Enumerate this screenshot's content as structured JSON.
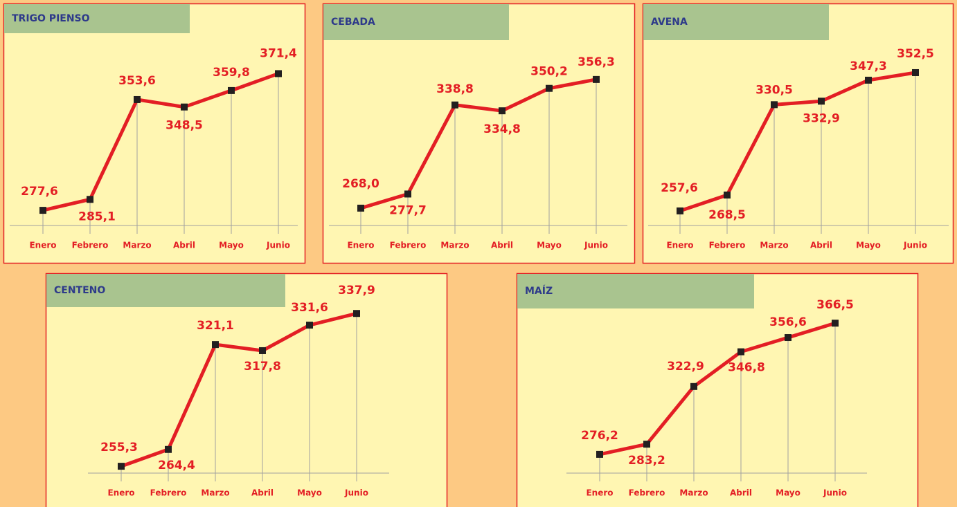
{
  "chart_data": [
    {
      "type": "line",
      "title": "TRIGO PIENSO",
      "categories": [
        "Enero",
        "Febrero",
        "Marzo",
        "Abril",
        "Mayo",
        "Junio"
      ],
      "values": [
        277.6,
        285.1,
        353.6,
        348.5,
        359.8,
        371.4
      ],
      "value_labels": [
        "277,6",
        "285,1",
        "353,6",
        "348,5",
        "359,8",
        "371,4"
      ],
      "color": "#e31e24",
      "ylim": [
        267.2,
        388.7
      ]
    },
    {
      "type": "line",
      "title": "CEBADA",
      "categories": [
        "Enero",
        "Febrero",
        "Marzo",
        "Abril",
        "Mayo",
        "Junio"
      ],
      "values": [
        268.0,
        277.7,
        338.8,
        334.8,
        350.2,
        356.3
      ],
      "value_labels": [
        "268,0",
        "277,7",
        "338,8",
        "334,8",
        "350,2",
        "356,3"
      ],
      "color": "#e31e24",
      "ylim": [
        256.1,
        377.6
      ]
    },
    {
      "type": "line",
      "title": "AVENA",
      "categories": [
        "Enero",
        "Febrero",
        "Marzo",
        "Abril",
        "Mayo",
        "Junio"
      ],
      "values": [
        257.6,
        268.5,
        330.5,
        332.9,
        347.3,
        352.5
      ],
      "value_labels": [
        "257,6",
        "268,5",
        "330,5",
        "332,9",
        "347,3",
        "352,5"
      ],
      "color": "#e31e24",
      "ylim": [
        247.6,
        369.1
      ]
    },
    {
      "type": "line",
      "title": "CENTENO",
      "categories": [
        "Enero",
        "Febrero",
        "Marzo",
        "Abril",
        "Mayo",
        "Junio"
      ],
      "values": [
        255.3,
        264.4,
        321.1,
        317.8,
        331.6,
        337.9
      ],
      "value_labels": [
        "255,3",
        "264,4",
        "321,1",
        "317,8",
        "331,6",
        "337,9"
      ],
      "color": "#e31e24",
      "ylim": [
        251.6,
        339.1
      ]
    },
    {
      "type": "line",
      "title": "MAÍZ",
      "categories": [
        "Enero",
        "Febrero",
        "Marzo",
        "Abril",
        "Mayo",
        "Junio"
      ],
      "values": [
        276.2,
        283.2,
        322.9,
        346.8,
        356.6,
        366.5
      ],
      "value_labels": [
        "276,2",
        "283,2",
        "322,9",
        "346,8",
        "356,6",
        "366,5"
      ],
      "color": "#e31e24",
      "ylim": [
        263.3,
        374.7
      ]
    }
  ]
}
